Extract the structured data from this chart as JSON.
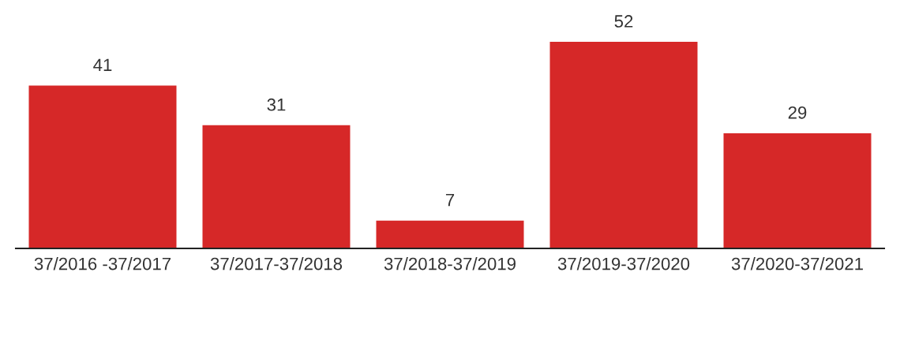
{
  "chart_data": {
    "type": "bar",
    "categories": [
      "37/2016 -37/2017",
      "37/2017-37/2018",
      "37/2018-37/2019",
      "37/2019-37/2020",
      "37/2020-37/2021"
    ],
    "values": [
      41,
      31,
      7,
      52,
      29
    ],
    "color": "#d62828",
    "data_labels": true,
    "tick_labels": "x",
    "grid": false,
    "legend": false
  }
}
